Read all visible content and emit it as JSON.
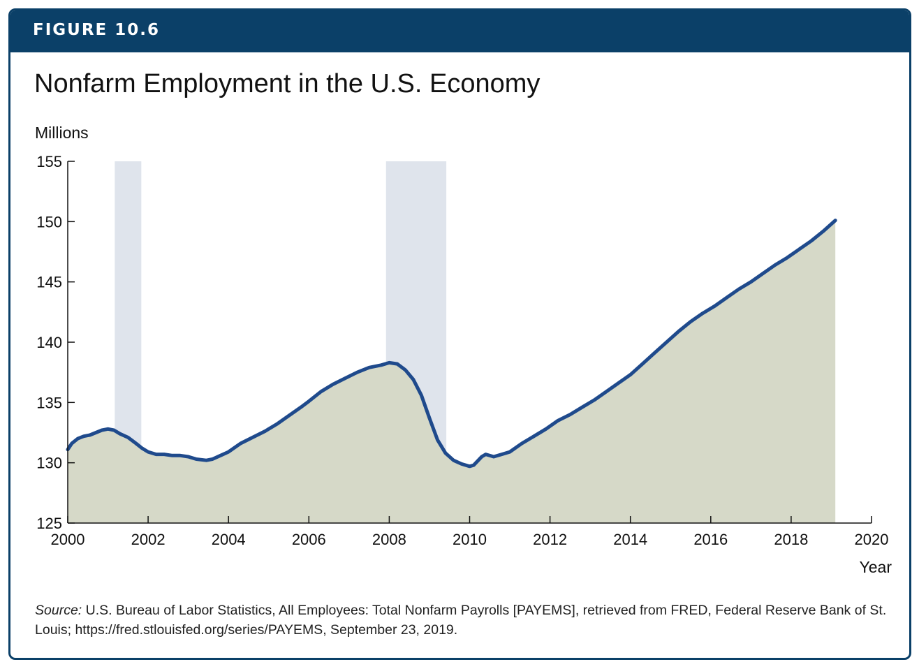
{
  "figure": {
    "label": "FIGURE 10.6",
    "title": "Nonfarm Employment in the U.S. Economy",
    "source_label": "Source:",
    "source_text": "U.S. Bureau of Labor Statistics, All Employees: Total Nonfarm Payrolls [PAYEMS], retrieved from FRED, Federal Reserve Bank of St. Louis; https://fred.stlouisfed.org/series/PAYEMS, September 23, 2019."
  },
  "colors": {
    "header": "#0b4068",
    "line": "#1f4a8c",
    "area_fill": "#d6d9c8",
    "recession_shade": "#dfe4ec",
    "axis": "#111111"
  },
  "chart_data": {
    "type": "area",
    "title": "Nonfarm Employment in the U.S. Economy",
    "xlabel": "Year",
    "ylabel": "Millions",
    "xlim": [
      2000,
      2020
    ],
    "ylim": [
      125,
      155
    ],
    "x_ticks": [
      2000,
      2002,
      2004,
      2006,
      2008,
      2010,
      2012,
      2014,
      2016,
      2018,
      2020
    ],
    "y_ticks": [
      125,
      130,
      135,
      140,
      145,
      150,
      155
    ],
    "grid": false,
    "recession_bands": [
      {
        "start": 2001.17,
        "end": 2001.83
      },
      {
        "start": 2007.92,
        "end": 2009.42
      }
    ],
    "series": [
      {
        "x": [
          2000.0,
          2000.1,
          2000.25,
          2000.4,
          2000.55,
          2000.7,
          2000.85,
          2001.0,
          2001.15,
          2001.3,
          2001.5,
          2001.7,
          2001.85,
          2002.0,
          2002.2,
          2002.4,
          2002.6,
          2002.8,
          2003.0,
          2003.2,
          2003.45,
          2003.6,
          2003.8,
          2004.0,
          2004.3,
          2004.6,
          2004.9,
          2005.2,
          2005.5,
          2005.8,
          2006.0,
          2006.3,
          2006.6,
          2006.9,
          2007.2,
          2007.5,
          2007.8,
          2008.0,
          2008.2,
          2008.4,
          2008.6,
          2008.8,
          2009.0,
          2009.2,
          2009.4,
          2009.6,
          2009.8,
          2010.0,
          2010.1,
          2010.3,
          2010.4,
          2010.6,
          2010.8,
          2011.0,
          2011.3,
          2011.6,
          2011.9,
          2012.2,
          2012.5,
          2012.8,
          2013.1,
          2013.4,
          2013.7,
          2014.0,
          2014.3,
          2014.6,
          2014.9,
          2015.2,
          2015.5,
          2015.8,
          2016.1,
          2016.4,
          2016.7,
          2017.0,
          2017.3,
          2017.6,
          2017.9,
          2018.2,
          2018.5,
          2018.8,
          2019.1
        ],
        "values": [
          131.1,
          131.6,
          132.0,
          132.2,
          132.3,
          132.5,
          132.7,
          132.8,
          132.7,
          132.4,
          132.1,
          131.6,
          131.2,
          130.9,
          130.7,
          130.7,
          130.6,
          130.6,
          130.5,
          130.3,
          130.2,
          130.3,
          130.6,
          130.9,
          131.6,
          132.1,
          132.6,
          133.2,
          133.9,
          134.6,
          135.1,
          135.9,
          136.5,
          137.0,
          137.5,
          137.9,
          138.1,
          138.3,
          138.2,
          137.7,
          136.9,
          135.6,
          133.7,
          131.9,
          130.8,
          130.2,
          129.9,
          129.7,
          129.8,
          130.5,
          130.7,
          130.5,
          130.7,
          130.9,
          131.6,
          132.2,
          132.8,
          133.5,
          134.0,
          134.6,
          135.2,
          135.9,
          136.6,
          137.3,
          138.2,
          139.1,
          140.0,
          140.9,
          141.7,
          142.4,
          143.0,
          143.7,
          144.4,
          145.0,
          145.7,
          146.4,
          147.0,
          147.7,
          148.4,
          149.2,
          150.1
        ]
      }
    ]
  }
}
